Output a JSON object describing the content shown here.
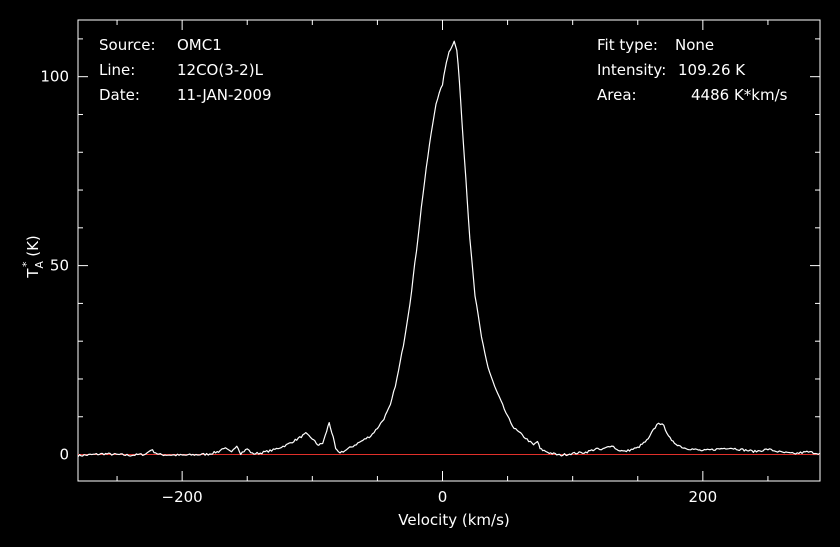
{
  "info_left": {
    "source_label": "Source:",
    "source_value": "OMC1",
    "line_label": "Line:",
    "line_value": "12CO(3-2)L",
    "date_label": "Date:",
    "date_value": "11-JAN-2009"
  },
  "info_right": {
    "fit_label": "Fit type:",
    "fit_value": "None",
    "intensity_label": "Intensity:",
    "intensity_value": "109.26 K",
    "area_label": "Area:",
    "area_value": "4486 K*km/s"
  },
  "colors": {
    "background": "#000000",
    "spectrum": "#ffffff",
    "baseline": "#e0302a",
    "axes": "#ffffff"
  },
  "chart_data": {
    "type": "line",
    "xlabel": "Velocity (km/s)",
    "ylabel_main": "T",
    "ylabel_sub": "A",
    "ylabel_sup": "*",
    "ylabel_unit": " (K)",
    "xlim": [
      -280,
      290
    ],
    "ylim": [
      -7,
      115
    ],
    "xticks": [
      -200,
      0,
      200
    ],
    "yticks": [
      0,
      50,
      100
    ],
    "xtick_labels": [
      "−200",
      "0",
      "200"
    ],
    "ytick_labels": [
      "0",
      "50",
      "100"
    ],
    "baseline": 0,
    "grid": false,
    "series": [
      {
        "x": [
          -280,
          -260,
          -240,
          -228,
          -224,
          -218,
          -200,
          -180,
          -172,
          -168,
          -162,
          -158,
          -155,
          -150,
          -146,
          -140,
          -130,
          -120,
          -112,
          -105,
          -100,
          -97,
          -95,
          -92,
          -90,
          -87,
          -84,
          -82,
          -80,
          -75,
          -70,
          -65,
          -60,
          -55,
          -50,
          -45,
          -40,
          -35,
          -30,
          -25,
          -20,
          -15,
          -10,
          -5,
          0,
          3,
          5,
          7,
          9,
          11,
          13,
          15,
          18,
          21,
          25,
          30,
          35,
          40,
          45,
          50,
          55,
          60,
          65,
          70,
          73,
          75,
          78,
          82,
          90,
          100,
          110,
          118,
          122,
          126,
          130,
          134,
          140,
          150,
          158,
          162,
          166,
          170,
          176,
          185,
          200,
          220,
          240,
          250,
          260,
          270,
          280,
          290
        ],
        "y": [
          -0.3,
          0.2,
          -0.2,
          0.1,
          1.3,
          0,
          -0.2,
          0.1,
          0.8,
          1.8,
          0.5,
          2.5,
          0.3,
          1.5,
          0.2,
          0.4,
          1.2,
          2.5,
          4.0,
          5.5,
          4.2,
          3,
          2.5,
          3,
          5,
          8.5,
          4.5,
          1.5,
          0.5,
          1,
          2,
          3,
          4,
          5,
          7,
          9.5,
          13,
          20,
          29,
          40,
          54,
          69,
          82,
          93,
          98,
          104,
          106.5,
          108,
          109.3,
          107,
          99,
          88,
          73,
          57,
          42,
          31,
          23,
          18,
          14,
          10,
          7,
          5.5,
          4,
          2.5,
          3.5,
          1.5,
          1,
          0.5,
          -0.2,
          0.3,
          0.6,
          1.5,
          1.2,
          1.8,
          2.5,
          1.3,
          0.8,
          1.8,
          4,
          6.5,
          8.5,
          7.5,
          3.5,
          1.8,
          1,
          1.8,
          0.8,
          1.4,
          0.6,
          0.2,
          0.7,
          0.3
        ]
      }
    ]
  }
}
